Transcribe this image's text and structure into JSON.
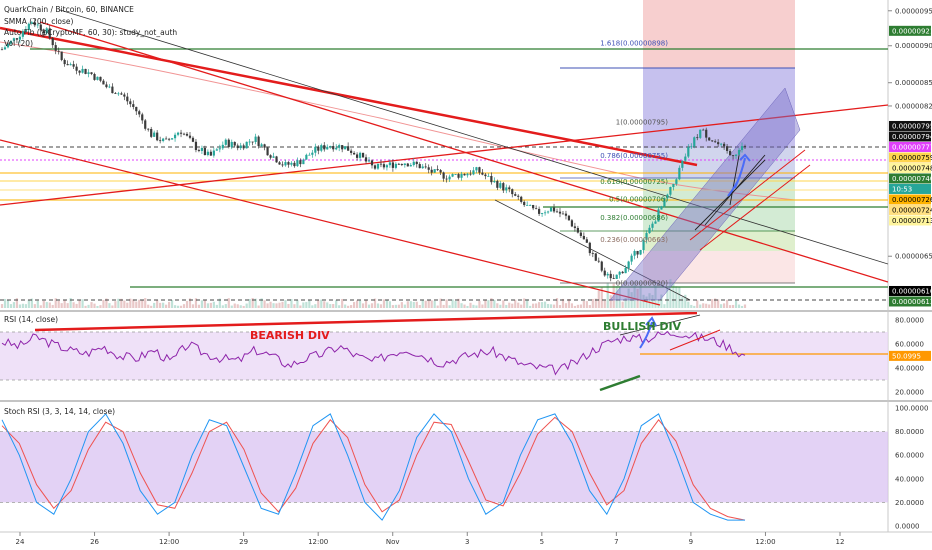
{
  "header": {
    "title": "QuarkChain / Bitcoin, 60, BINANCE",
    "indicators": [
      "SMMA (200, close)",
      "Auto Fib (@CryptoMF, 60, 30): study_not_auth",
      "Vol (20)"
    ]
  },
  "colors": {
    "up": "#26a69a",
    "down": "#3b3b3b",
    "trend_red": "#e31c1c",
    "rsi_line": "#8e24aa",
    "rsi_band": "#e9d7f5",
    "stoch_k": "#2196f3",
    "stoch_d": "#ef5350",
    "stoch_band": "#d9c3f2",
    "green_line": "#2e7d32",
    "orange_line": "#ff9800",
    "magenta": "#e040fb",
    "projection_blue": "#8888dd",
    "target_red": "#f3b6b6"
  },
  "icons": {
    "pattern_arrow": "curved-up-arrow-icon"
  },
  "chart_data": [
    {
      "type": "candlestick",
      "title": "QuarkChain / Bitcoin, 60, BINANCE",
      "x_ticks": [
        "24",
        "26",
        "12:00",
        "29",
        "12:00",
        "Nov",
        "3",
        "5",
        "7",
        "9",
        "12:00",
        "12"
      ],
      "y_ticks": [
        "0.00000950",
        "0.00000900",
        "0.00000850",
        "0.00000820",
        "0.00000650"
      ],
      "ylim": [
        6e-06,
        9.6e-06
      ],
      "close_series": [
        {
          "t": 0,
          "v": 8.95e-06
        },
        {
          "t": 2,
          "v": 9.12e-06
        },
        {
          "t": 4,
          "v": 9.35e-06
        },
        {
          "t": 6,
          "v": 9.2e-06
        },
        {
          "t": 8,
          "v": 8.8e-06
        },
        {
          "t": 10,
          "v": 8.7e-06
        },
        {
          "t": 12,
          "v": 8.62e-06
        },
        {
          "t": 14,
          "v": 8.45e-06
        },
        {
          "t": 16,
          "v": 8.35e-06
        },
        {
          "t": 18,
          "v": 8.15e-06
        },
        {
          "t": 20,
          "v": 7.85e-06
        },
        {
          "t": 22,
          "v": 7.75e-06
        },
        {
          "t": 24,
          "v": 7.9e-06
        },
        {
          "t": 26,
          "v": 7.7e-06
        },
        {
          "t": 28,
          "v": 7.58e-06
        },
        {
          "t": 30,
          "v": 7.75e-06
        },
        {
          "t": 32,
          "v": 7.7e-06
        },
        {
          "t": 34,
          "v": 7.8e-06
        },
        {
          "t": 36,
          "v": 7.62e-06
        },
        {
          "t": 38,
          "v": 7.48e-06
        },
        {
          "t": 40,
          "v": 7.52e-06
        },
        {
          "t": 42,
          "v": 7.65e-06
        },
        {
          "t": 44,
          "v": 7.72e-06
        },
        {
          "t": 46,
          "v": 7.7e-06
        },
        {
          "t": 48,
          "v": 7.6e-06
        },
        {
          "t": 50,
          "v": 7.45e-06
        },
        {
          "t": 52,
          "v": 7.48e-06
        },
        {
          "t": 54,
          "v": 7.52e-06
        },
        {
          "t": 56,
          "v": 7.48e-06
        },
        {
          "t": 58,
          "v": 7.4e-06
        },
        {
          "t": 60,
          "v": 7.35e-06
        },
        {
          "t": 62,
          "v": 7.38e-06
        },
        {
          "t": 64,
          "v": 7.42e-06
        },
        {
          "t": 66,
          "v": 7.3e-06
        },
        {
          "t": 68,
          "v": 7.2e-06
        },
        {
          "t": 70,
          "v": 7.05e-06
        },
        {
          "t": 72,
          "v": 6.95e-06
        },
        {
          "t": 74,
          "v": 7e-06
        },
        {
          "t": 76,
          "v": 6.9e-06
        },
        {
          "t": 78,
          "v": 6.7e-06
        },
        {
          "t": 80,
          "v": 6.45e-06
        },
        {
          "t": 82,
          "v": 6.25e-06
        },
        {
          "t": 84,
          "v": 6.4e-06
        },
        {
          "t": 86,
          "v": 6.6e-06
        },
        {
          "t": 88,
          "v": 6.9e-06
        },
        {
          "t": 90,
          "v": 7.2e-06
        },
        {
          "t": 92,
          "v": 7.6e-06
        },
        {
          "t": 94,
          "v": 7.9e-06
        },
        {
          "t": 96,
          "v": 7.75e-06
        },
        {
          "t": 98,
          "v": 7.6e-06
        },
        {
          "t": 100,
          "v": 7.7e-06
        }
      ],
      "price_tags": [
        {
          "label": "0.00000921",
          "value": 9.21e-06,
          "bg": "#2e7d32",
          "fg": "#ffffff"
        },
        {
          "label": "0.00000795",
          "value": 7.95e-06,
          "bg": "#111111",
          "fg": "#ffffff"
        },
        {
          "label": "0.00000794",
          "value": 7.94e-06,
          "bg": "#111111",
          "fg": "#ffffff"
        },
        {
          "label": "0.00000777",
          "value": 7.77e-06,
          "bg": "#e040fb",
          "fg": "#ffffff"
        },
        {
          "label": "0.00000759",
          "value": 7.59e-06,
          "bg": "#ffd54f",
          "fg": "#000000"
        },
        {
          "label": "0.00000748",
          "value": 7.48e-06,
          "bg": "#fff59d",
          "fg": "#000000"
        },
        {
          "label": "0.00000740",
          "value": 7.4e-06,
          "bg": "#2e7d32",
          "fg": "#ffffff"
        },
        {
          "label": "10:53",
          "value": 7.33e-06,
          "bg": "#26a69a",
          "fg": "#ffffff"
        },
        {
          "label": "0.00000726",
          "value": 7.26e-06,
          "bg": "#ffb300",
          "fg": "#000000"
        },
        {
          "label": "0.00000724",
          "value": 7.24e-06,
          "bg": "#ffe082",
          "fg": "#000000"
        },
        {
          "label": "0.00000713",
          "value": 7.13e-06,
          "bg": "#fff59d",
          "fg": "#000000"
        },
        {
          "label": "0.00000616",
          "value": 6.16e-06,
          "bg": "#000000",
          "fg": "#ffffff"
        },
        {
          "label": "0.00000613",
          "value": 6.13e-06,
          "bg": "#2e7d32",
          "fg": "#ffffff"
        }
      ],
      "fib_levels": [
        {
          "label": "1.618(0.00000898)",
          "value": 8.98e-06,
          "color": "#3f51b5"
        },
        {
          "label": "1(0.00000795)",
          "value": 7.95e-06,
          "color": "#555555"
        },
        {
          "label": "0.786(0.00000755)",
          "value": 7.55e-06,
          "color": "#3f51b5"
        },
        {
          "label": "0.618(0.00000725)",
          "value": 7.25e-06,
          "color": "#2e7d32"
        },
        {
          "label": "0.5(0.00000706)",
          "value": 7.06e-06,
          "color": "#2e7d32"
        },
        {
          "label": "0.382(0.00000686)",
          "value": 6.86e-06,
          "color": "#2e7d32"
        },
        {
          "label": "0.236(0.00000663)",
          "value": 6.63e-06,
          "color": "#8d6e63"
        },
        {
          "label": "0(0.00000620)",
          "value": 6.2e-06,
          "color": "#555555"
        }
      ]
    },
    {
      "type": "line",
      "title": "RSI (14, close)",
      "y_ticks": [
        "80.0000",
        "60.0000",
        "40.0000",
        "20.0000"
      ],
      "ylim": [
        15,
        85
      ],
      "band": [
        30,
        70
      ],
      "last_value_label": "50.0995",
      "annotations": [
        "BEARISH DIV",
        "BULLISH DIV"
      ],
      "values": [
        62,
        58,
        66,
        60,
        55,
        52,
        58,
        50,
        48,
        55,
        45,
        60,
        52,
        48,
        46,
        55,
        50,
        42,
        48,
        52,
        58,
        50,
        45,
        52,
        56,
        50,
        44,
        48,
        52,
        54,
        48,
        42,
        40,
        38,
        45,
        55,
        62,
        66,
        64,
        68,
        70,
        66,
        64,
        58,
        50
      ]
    },
    {
      "type": "line",
      "title": "Stoch RSI (3, 3, 14, 14, close)",
      "y_ticks": [
        "100.0000",
        "80.0000",
        "60.0000",
        "40.0000",
        "20.0000",
        "0.0000"
      ],
      "ylim": [
        0,
        100
      ],
      "band": [
        20,
        80
      ],
      "series": [
        {
          "values": [
            90,
            60,
            20,
            10,
            40,
            80,
            95,
            70,
            30,
            10,
            20,
            60,
            90,
            85,
            50,
            15,
            10,
            45,
            85,
            95,
            60,
            20,
            5,
            30,
            75,
            95,
            80,
            40,
            10,
            20,
            60,
            90,
            95,
            70,
            30,
            10,
            40,
            85,
            95,
            60,
            20,
            10,
            5,
            5
          ]
        },
        {
          "values": [
            85,
            70,
            35,
            15,
            30,
            65,
            88,
            80,
            45,
            18,
            15,
            45,
            80,
            88,
            65,
            28,
            12,
            32,
            70,
            90,
            75,
            35,
            12,
            22,
            60,
            88,
            86,
            55,
            22,
            17,
            45,
            78,
            92,
            80,
            45,
            18,
            30,
            70,
            90,
            72,
            35,
            15,
            8,
            5
          ]
        }
      ]
    }
  ]
}
